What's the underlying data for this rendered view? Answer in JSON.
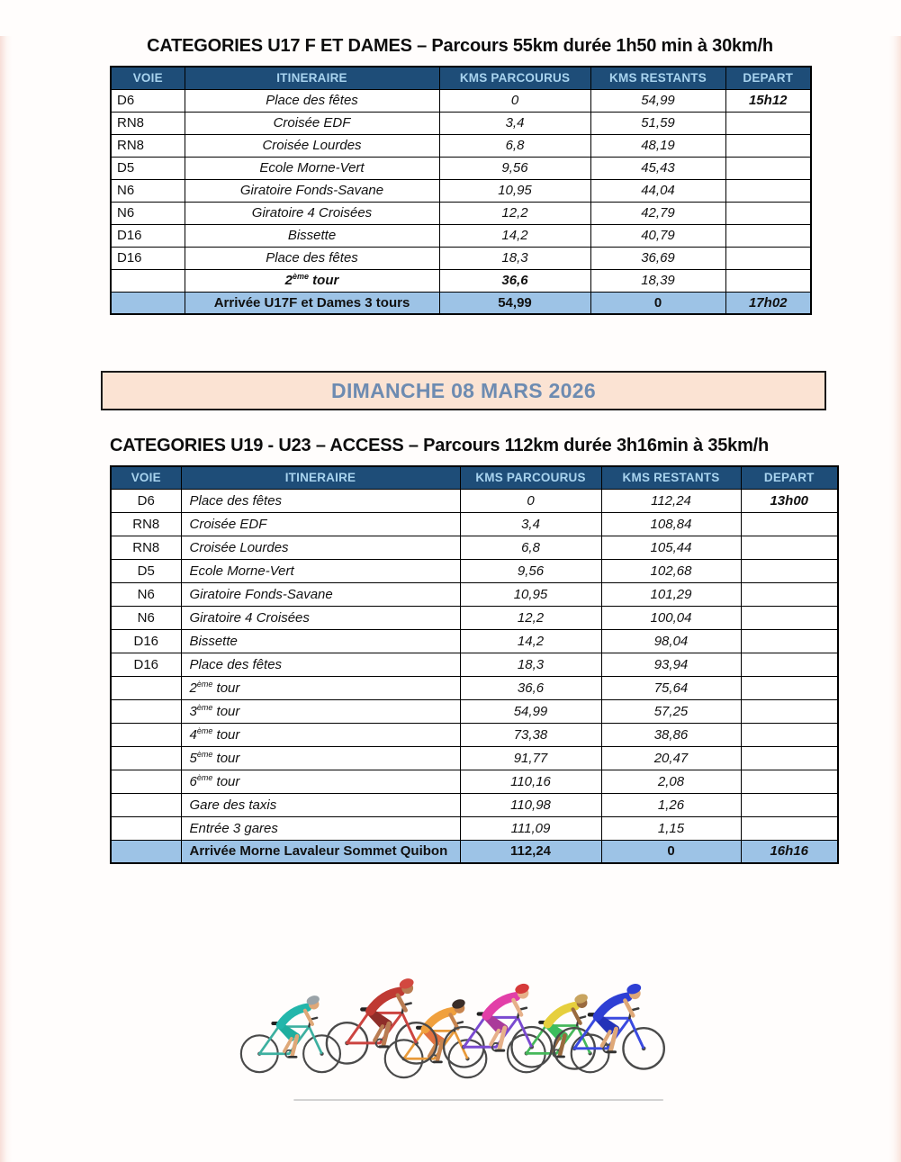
{
  "day_banner": {
    "label": "DIMANCHE 08 MARS 2026"
  },
  "colors": {
    "header_bg": "#1e4d78",
    "header_text": "#a8d3ee",
    "arrival_row_bg": "#9dc3e6",
    "banner_bg": "#fbe3d3",
    "banner_text": "#6d8bb1"
  },
  "tables": [
    {
      "title": "CATEGORIES U17 F ET DAMES – Parcours 55km durée 1h50 min à 30km/h",
      "headers": [
        "VOIE",
        "ITINERAIRE",
        "KMS PARCOURUS",
        "KMS RESTANTS",
        "DEPART"
      ],
      "rows": [
        {
          "voie": "D6",
          "itineraire": "Place des fêtes",
          "kms_parcourus": "0",
          "kms_restants": "54,99",
          "depart": "15h12"
        },
        {
          "voie": "RN8",
          "itineraire": "Croisée EDF",
          "kms_parcourus": "3,4",
          "kms_restants": "51,59",
          "depart": ""
        },
        {
          "voie": "RN8",
          "itineraire": "Croisée Lourdes",
          "kms_parcourus": "6,8",
          "kms_restants": "48,19",
          "depart": ""
        },
        {
          "voie": "D5",
          "itineraire": "Ecole Morne-Vert",
          "kms_parcourus": "9,56",
          "kms_restants": "45,43",
          "depart": ""
        },
        {
          "voie": "N6",
          "itineraire": "Giratoire Fonds-Savane",
          "kms_parcourus": "10,95",
          "kms_restants": "44,04",
          "depart": ""
        },
        {
          "voie": "N6",
          "itineraire": "Giratoire 4 Croisées",
          "kms_parcourus": "12,2",
          "kms_restants": "42,79",
          "depart": ""
        },
        {
          "voie": "D16",
          "itineraire": "Bissette",
          "kms_parcourus": "14,2",
          "kms_restants": "40,79",
          "depart": ""
        },
        {
          "voie": "D16",
          "itineraire": "Place des fêtes",
          "kms_parcourus": "18,3",
          "kms_restants": "36,69",
          "depart": ""
        },
        {
          "voie": "",
          "itineraire": "2ème tour",
          "sup": true,
          "emph": true,
          "kms_parcourus": "36,6",
          "kms_restants": "18,39",
          "depart": ""
        },
        {
          "voie": "",
          "itineraire": "Arrivée U17F et Dames 3 tours",
          "arrival": true,
          "kms_parcourus": "54,99",
          "kms_restants": "0",
          "depart": "17h02"
        }
      ]
    },
    {
      "title": "CATEGORIES U19 - U23 – ACCESS – Parcours 112km durée 3h16min à 35km/h",
      "headers": [
        "VOIE",
        "ITINERAIRE",
        "KMS PARCOURUS",
        "KMS RESTANTS",
        "DEPART"
      ],
      "rows": [
        {
          "voie": "D6",
          "itineraire": "Place des fêtes",
          "kms_parcourus": "0",
          "kms_restants": "112,24",
          "depart": "13h00"
        },
        {
          "voie": "RN8",
          "itineraire": "Croisée EDF",
          "kms_parcourus": "3,4",
          "kms_restants": "108,84",
          "depart": ""
        },
        {
          "voie": "RN8",
          "itineraire": "Croisée Lourdes",
          "kms_parcourus": "6,8",
          "kms_restants": "105,44",
          "depart": ""
        },
        {
          "voie": "D5",
          "itineraire": "Ecole Morne-Vert",
          "kms_parcourus": "9,56",
          "kms_restants": "102,68",
          "depart": ""
        },
        {
          "voie": "N6",
          "itineraire": "Giratoire Fonds-Savane",
          "kms_parcourus": "10,95",
          "kms_restants": "101,29",
          "depart": ""
        },
        {
          "voie": "N6",
          "itineraire": "Giratoire 4 Croisées",
          "kms_parcourus": "12,2",
          "kms_restants": "100,04",
          "depart": ""
        },
        {
          "voie": "D16",
          "itineraire": "Bissette",
          "kms_parcourus": "14,2",
          "kms_restants": "98,04",
          "depart": ""
        },
        {
          "voie": "D16",
          "itineraire": "Place des fêtes",
          "kms_parcourus": "18,3",
          "kms_restants": "93,94",
          "depart": ""
        },
        {
          "voie": "",
          "itineraire": "2ème tour",
          "sup": true,
          "kms_parcourus": "36,6",
          "kms_restants": "75,64",
          "depart": ""
        },
        {
          "voie": "",
          "itineraire": "3ème tour",
          "sup": true,
          "kms_parcourus": "54,99",
          "kms_restants": "57,25",
          "depart": ""
        },
        {
          "voie": "",
          "itineraire": "4ème tour",
          "sup": true,
          "kms_parcourus": "73,38",
          "kms_restants": "38,86",
          "depart": ""
        },
        {
          "voie": "",
          "itineraire": "5ème tour",
          "sup": true,
          "kms_parcourus": "91,77",
          "kms_restants": "20,47",
          "depart": ""
        },
        {
          "voie": "",
          "itineraire": "6ème tour",
          "sup": true,
          "kms_parcourus": "110,16",
          "kms_restants": "2,08",
          "depart": ""
        },
        {
          "voie": "",
          "itineraire": "Gare des taxis",
          "kms_parcourus": "110,98",
          "kms_restants": "1,26",
          "depart": ""
        },
        {
          "voie": "",
          "itineraire": "Entrée 3 gares",
          "kms_parcourus": "111,09",
          "kms_restants": "1,15",
          "depart": ""
        },
        {
          "voie": "",
          "itineraire": "Arrivée Morne Lavaleur Sommet Quibon",
          "arrival": true,
          "kms_parcourus": "112,24",
          "kms_restants": "0",
          "depart": "16h16"
        }
      ]
    }
  ],
  "illustration": {
    "description": "peloton of six cyclists racing",
    "riders": [
      {
        "name": "teal-rider",
        "colors": {
          "jersey": "#23b6ab",
          "helmet": "#9aa3a8",
          "skin": "#dfa878",
          "shorts": "#1fae9f",
          "bike": "#3db0a0"
        }
      },
      {
        "name": "red-rider",
        "colors": {
          "jersey": "#bf3a33",
          "helmet": "#d24840",
          "skin": "#b97c52",
          "shorts": "#8e2e29",
          "bike": "#cc4440"
        }
      },
      {
        "name": "orange-rider",
        "colors": {
          "jersey": "#f0a03d",
          "helmet": "#3a2d28",
          "skin": "#c8854f",
          "shorts": "#e2703f",
          "bike": "#e89a3a"
        }
      },
      {
        "name": "magenta-rider",
        "colors": {
          "jersey": "#e23fa8",
          "helmet": "#d63a3a",
          "skin": "#e6b089",
          "shorts": "#aa3a9a",
          "bike": "#7a4ad0"
        }
      },
      {
        "name": "yellow-rider",
        "colors": {
          "jersey": "#e6cf3d",
          "helmet": "#c8a45f",
          "skin": "#9a6a3f",
          "shorts": "#3cbd5d",
          "bike": "#45b85a"
        }
      },
      {
        "name": "blue-rider",
        "colors": {
          "jersey": "#2e3fd4",
          "helmet": "#2e3fd4",
          "skin": "#dfa878",
          "shorts": "#2433b8",
          "bike": "#3a4ae0"
        }
      }
    ]
  }
}
